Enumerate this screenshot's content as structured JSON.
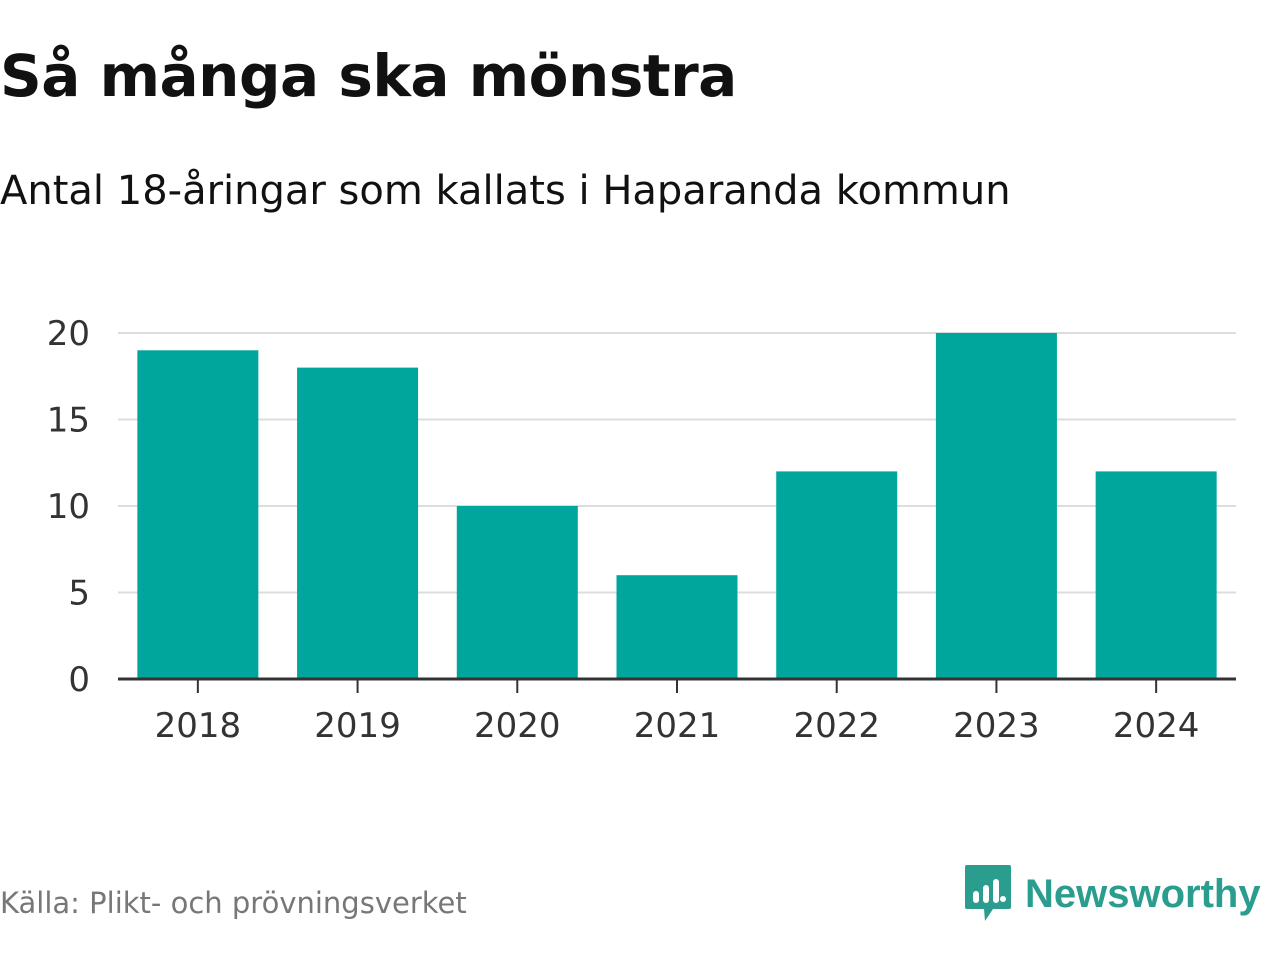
{
  "header": {
    "title": "Så många ska mönstra",
    "subtitle": "Antal 18-åringar som kallats i Haparanda kommun"
  },
  "footer": {
    "source": "Källa: Plikt- och prövningsverket",
    "brand": "Newsworthy"
  },
  "colors": {
    "bar": "#00a69c",
    "grid": "#dddddd",
    "axis": "#333333",
    "brand": "#2a9d8f"
  },
  "icons": {
    "logo": "newsworthy-logo-icon"
  },
  "chart_data": {
    "type": "bar",
    "categories": [
      "2018",
      "2019",
      "2020",
      "2021",
      "2022",
      "2023",
      "2024"
    ],
    "values": [
      19,
      18,
      10,
      6,
      12,
      20,
      12
    ],
    "ylim": [
      0,
      20
    ],
    "yticks": [
      0,
      5,
      10,
      15,
      20
    ],
    "grid": true,
    "legend": "none"
  }
}
